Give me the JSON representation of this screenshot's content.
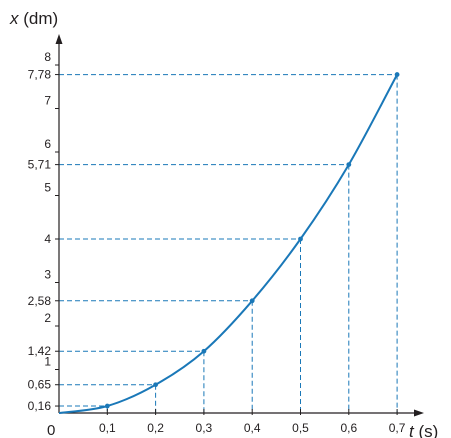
{
  "chart_data": {
    "type": "line",
    "xlabel_var": "t",
    "xlabel_unit": " (s)",
    "ylabel_var": "x",
    "ylabel_unit": " (dm)",
    "origin_label": "0",
    "x": [
      0,
      0.1,
      0.2,
      0.3,
      0.4,
      0.5,
      0.6,
      0.7
    ],
    "x_tick_labels": [
      "0,1",
      "0,2",
      "0,3",
      "0,4",
      "0,5",
      "0,6",
      "0,7"
    ],
    "y_tick_values": [
      1,
      2,
      3,
      4,
      5,
      6,
      7,
      8
    ],
    "y_tick_labels": [
      "1",
      "2",
      "3",
      "4",
      "5",
      "6",
      "7",
      "8"
    ],
    "series": [
      {
        "values": [
          0,
          0.16,
          0.65,
          1.42,
          2.58,
          4,
          5.71,
          7.78
        ]
      }
    ],
    "point_labels": [
      "0,16",
      "0,65",
      "1,42",
      "2,58",
      "4",
      "5,71",
      "7,78"
    ],
    "xlim": [
      0,
      0.7
    ],
    "ylim": [
      0,
      8
    ],
    "guide_lines": "dashed",
    "grid": false,
    "colors": {
      "curve": "#1a78b8",
      "guides": "#1a78b8",
      "axes": "#231f20",
      "text": "#231f20"
    }
  }
}
